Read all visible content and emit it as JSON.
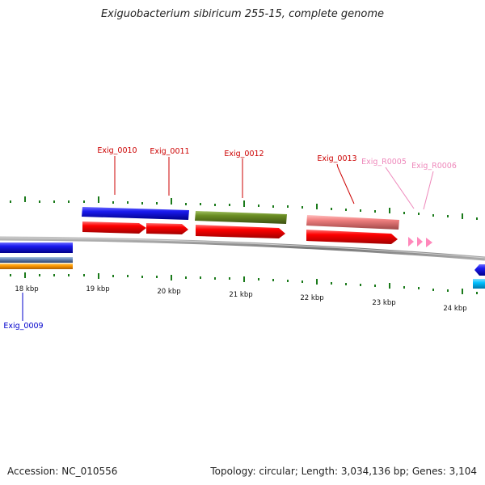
{
  "title": "Exiguobacterium sibiricum 255-15, complete genome",
  "footer": {
    "accession": "Accession: NC_010556",
    "summary": "Topology: circular; Length: 3,034,136 bp; Genes: 3,104"
  },
  "scale_labels": [
    "18 kbp",
    "19 kbp",
    "20 kbp",
    "21 kbp",
    "22 kbp",
    "23 kbp",
    "24 kbp"
  ],
  "gene_labels": {
    "exig_0009": "Exig_0009",
    "exig_0010": "Exig_0010",
    "exig_0011": "Exig_0011",
    "exig_0012": "Exig_0012",
    "exig_0013": "Exig_0013",
    "exig_r0005": "Exig_R0005",
    "exig_r0006": "Exig_R0006"
  },
  "colors": {
    "forward_gene": "#ff0000",
    "reverse_gene": "#0000ee",
    "cog_blue": "#1a1aee",
    "cog_olive": "#6b8e23",
    "cog_salmon": "#f08080",
    "cog_orange": "#ff9900",
    "cog_cyan": "#00bfff",
    "rna_pink": "#ff88bb",
    "tick": "#1a7a1a",
    "backbone": "#888888",
    "label_forward": "#cc0000",
    "label_reverse": "#0000cc",
    "label_rna": "#ee88bb"
  }
}
